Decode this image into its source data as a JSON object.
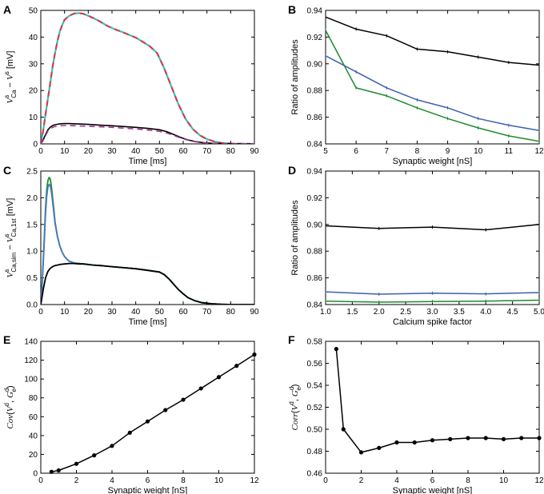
{
  "chart_data": [
    {
      "panel": "A",
      "type": "line",
      "xlabel": "Time [ms]",
      "ylabel": "V_Ca^s − V^s [mV]",
      "ylabel_parts": {
        "v1": "V",
        "sub1": "Ca",
        "sup1": "s",
        "mid": " − ",
        "v2": "V",
        "sup2": "s",
        "unit": " [mV]"
      },
      "xlim": [
        0,
        90
      ],
      "ylim": [
        0,
        50
      ],
      "xticks": [
        0,
        10,
        20,
        30,
        40,
        50,
        60,
        70,
        80,
        90
      ],
      "yticks": [
        0,
        10,
        20,
        30,
        40,
        50
      ],
      "series": [
        {
          "name": "large-cyan",
          "color": "#2ec4c4",
          "dash": "none",
          "width": 2.2,
          "x": [
            0,
            1,
            2,
            3,
            4,
            5,
            6,
            7,
            8,
            9,
            10,
            12,
            14,
            16,
            18,
            20,
            22,
            25,
            28,
            31,
            34,
            37,
            40,
            43,
            46,
            49,
            52,
            55,
            58,
            61,
            64,
            67,
            70,
            73,
            76,
            79,
            82,
            85,
            88,
            90
          ],
          "y": [
            0,
            5,
            11,
            17,
            23,
            29,
            34,
            38.5,
            42,
            44.5,
            46.5,
            48,
            48.8,
            49,
            48.7,
            48,
            47.2,
            45.8,
            44.2,
            43,
            42,
            40.9,
            39.8,
            38.2,
            36.5,
            34,
            28.3,
            21.5,
            14.8,
            9.3,
            5.6,
            3.2,
            1.8,
            0.9,
            0.4,
            0.2,
            0.1,
            0.05,
            0,
            0
          ]
        },
        {
          "name": "large-red-dashed",
          "color": "#e8323c",
          "dash": "7,5",
          "width": 2.0,
          "x": [
            0,
            1,
            2,
            3,
            4,
            5,
            6,
            7,
            8,
            9,
            10,
            12,
            14,
            16,
            18,
            20,
            22,
            25,
            28,
            31,
            34,
            37,
            40,
            43,
            46,
            49,
            52,
            55,
            58,
            61,
            64,
            67,
            70,
            73,
            76,
            79,
            82,
            85,
            88,
            90
          ],
          "y": [
            0,
            5,
            11,
            17,
            23,
            29,
            34,
            38.5,
            42,
            44.5,
            46.5,
            48,
            48.8,
            49,
            48.7,
            48,
            47.2,
            45.8,
            44.2,
            43,
            42,
            40.9,
            39.8,
            38.2,
            36.5,
            34,
            28.3,
            21.5,
            14.8,
            9.3,
            5.6,
            3.2,
            1.8,
            0.9,
            0.4,
            0.2,
            0.1,
            0.05,
            0,
            0
          ]
        },
        {
          "name": "small-black",
          "color": "#000000",
          "dash": "none",
          "width": 1.6,
          "x": [
            0,
            1,
            2,
            3,
            4,
            5,
            6,
            8,
            10,
            12,
            15,
            20,
            25,
            30,
            35,
            40,
            45,
            50,
            53,
            56,
            59,
            62,
            65,
            68,
            72,
            76,
            80,
            84,
            90
          ],
          "y": [
            0,
            1.5,
            3.5,
            5.3,
            6.3,
            6.9,
            7.2,
            7.5,
            7.6,
            7.6,
            7.5,
            7.3,
            7.0,
            6.8,
            6.5,
            6.2,
            5.8,
            5.3,
            4.6,
            3.5,
            2.4,
            1.5,
            0.9,
            0.5,
            0.2,
            0.1,
            0.05,
            0,
            0
          ]
        },
        {
          "name": "small-purple-dashed",
          "color": "#a0368c",
          "dash": "7,5",
          "width": 1.6,
          "x": [
            0,
            1,
            2,
            3,
            4,
            5,
            6,
            8,
            10,
            12,
            15,
            20,
            25,
            30,
            35,
            40,
            45,
            50,
            53,
            56,
            59,
            62,
            65,
            68,
            72,
            76,
            80,
            84,
            90
          ],
          "y": [
            0,
            1.3,
            3.1,
            4.8,
            5.7,
            6.2,
            6.5,
            6.8,
            6.9,
            6.9,
            6.8,
            6.6,
            6.4,
            6.2,
            5.9,
            5.6,
            5.2,
            4.7,
            4.1,
            3.2,
            2.2,
            1.4,
            0.8,
            0.4,
            0.15,
            0.05,
            0,
            0,
            0
          ]
        }
      ]
    },
    {
      "panel": "B",
      "type": "line",
      "xlabel": "Synaptic weight [nS]",
      "ylabel": "Ratio of amplitudes",
      "xlim": [
        5,
        12
      ],
      "ylim": [
        0.84,
        0.94
      ],
      "xticks": [
        5,
        6,
        7,
        8,
        9,
        10,
        11,
        12
      ],
      "yticks": [
        0.84,
        0.86,
        0.88,
        0.9,
        0.92,
        0.94
      ],
      "ytick_labels": [
        "0.84",
        "0.86",
        "0.88",
        "0.90",
        "0.92",
        "0.94"
      ],
      "x": [
        5,
        6,
        7,
        8,
        9,
        10,
        11,
        12
      ],
      "series": [
        {
          "name": "black",
          "color": "#000000",
          "values": [
            0.935,
            0.926,
            0.921,
            0.911,
            0.909,
            0.905,
            0.901,
            0.899
          ]
        },
        {
          "name": "blue",
          "color": "#3b5fb0",
          "values": [
            0.906,
            0.894,
            0.882,
            0.873,
            0.867,
            0.859,
            0.854,
            0.85
          ]
        },
        {
          "name": "green",
          "color": "#1e8a2e",
          "values": [
            0.925,
            0.882,
            0.876,
            0.867,
            0.859,
            0.852,
            0.846,
            0.842
          ]
        }
      ]
    },
    {
      "panel": "C",
      "type": "line",
      "xlabel": "Time [ms]",
      "ylabel": "V_Ca,sim^s − V_Ca,1st^s [mV]",
      "ylabel_parts": {
        "v1": "V",
        "sub1": "Ca,sim",
        "sup1": "s",
        "mid": " − ",
        "v2": "V",
        "sub2": "Ca,1st",
        "sup2": "s",
        "unit": " [mV]"
      },
      "xlim": [
        0,
        90
      ],
      "ylim": [
        0,
        2.5
      ],
      "xticks": [
        0,
        10,
        20,
        30,
        40,
        50,
        60,
        70,
        80,
        90
      ],
      "yticks": [
        0,
        0.5,
        1.0,
        1.5,
        2.0,
        2.5
      ],
      "ytick_labels": [
        "0.0",
        "0.5",
        "1.0",
        "1.5",
        "2.0",
        "2.5"
      ],
      "series": [
        {
          "name": "green",
          "color": "#1e8a2e",
          "width": 1.8,
          "x": [
            0,
            0.5,
            1,
            1.5,
            2,
            2.5,
            3,
            3.5,
            4,
            4.5,
            5,
            5.5,
            6,
            7,
            8,
            9,
            10,
            11,
            12,
            14,
            16,
            18,
            20,
            22,
            25,
            30,
            35,
            40,
            45,
            50,
            52,
            54,
            56,
            58,
            60,
            62,
            65,
            68,
            72,
            76,
            80,
            84,
            88,
            90
          ],
          "y": [
            0,
            0.35,
            0.8,
            1.3,
            1.8,
            2.15,
            2.32,
            2.38,
            2.35,
            2.2,
            2.0,
            1.78,
            1.55,
            1.28,
            1.1,
            0.98,
            0.9,
            0.85,
            0.81,
            0.78,
            0.77,
            0.76,
            0.75,
            0.74,
            0.73,
            0.71,
            0.69,
            0.67,
            0.64,
            0.61,
            0.56,
            0.48,
            0.38,
            0.28,
            0.2,
            0.13,
            0.07,
            0.035,
            0.015,
            0.005,
            0,
            0,
            0,
            0
          ]
        },
        {
          "name": "blue",
          "color": "#4a78c0",
          "width": 1.8,
          "x": [
            0,
            0.5,
            1,
            1.5,
            2,
            2.5,
            3,
            3.5,
            4,
            4.5,
            5,
            5.5,
            6,
            7,
            8,
            9,
            10,
            11,
            12,
            14,
            16,
            18,
            20,
            22,
            25,
            30,
            35,
            40,
            45,
            50,
            52,
            54,
            56,
            58,
            60,
            62,
            65,
            68,
            72,
            76,
            80,
            84,
            88,
            90
          ],
          "y": [
            0,
            0.32,
            0.75,
            1.22,
            1.7,
            2.03,
            2.2,
            2.25,
            2.22,
            2.1,
            1.92,
            1.72,
            1.52,
            1.27,
            1.1,
            0.98,
            0.9,
            0.85,
            0.81,
            0.78,
            0.77,
            0.76,
            0.75,
            0.74,
            0.73,
            0.71,
            0.69,
            0.67,
            0.64,
            0.61,
            0.56,
            0.48,
            0.38,
            0.28,
            0.2,
            0.13,
            0.07,
            0.035,
            0.015,
            0.005,
            0,
            0,
            0,
            0
          ]
        },
        {
          "name": "black",
          "color": "#000000",
          "width": 1.8,
          "x": [
            0,
            1,
            2,
            3,
            4,
            5,
            6,
            7,
            8,
            10,
            12,
            14,
            16,
            18,
            20,
            22,
            25,
            30,
            35,
            40,
            45,
            50,
            52,
            54,
            56,
            58,
            60,
            62,
            65,
            68,
            72,
            76,
            80,
            84,
            88,
            90
          ],
          "y": [
            0,
            0.28,
            0.5,
            0.62,
            0.68,
            0.71,
            0.73,
            0.74,
            0.75,
            0.76,
            0.77,
            0.77,
            0.76,
            0.76,
            0.75,
            0.74,
            0.73,
            0.71,
            0.69,
            0.67,
            0.64,
            0.61,
            0.56,
            0.48,
            0.38,
            0.28,
            0.2,
            0.13,
            0.07,
            0.035,
            0.015,
            0.005,
            0,
            0,
            0,
            0
          ]
        }
      ]
    },
    {
      "panel": "D",
      "type": "line",
      "xlabel": "Calcium spike factor",
      "ylabel": "Ratio of amplitudes",
      "xlim": [
        1.0,
        5.0
      ],
      "ylim": [
        0.84,
        0.94
      ],
      "xticks": [
        1.0,
        1.5,
        2.0,
        2.5,
        3.0,
        3.5,
        4.0,
        4.5,
        5.0
      ],
      "xtick_labels": [
        "1.0",
        "1.5",
        "2.0",
        "2.5",
        "3.0",
        "3.5",
        "4.0",
        "4.5",
        "5.0"
      ],
      "yticks": [
        0.84,
        0.86,
        0.88,
        0.9,
        0.92,
        0.94
      ],
      "ytick_labels": [
        "0.84",
        "0.86",
        "0.88",
        "0.90",
        "0.92",
        "0.94"
      ],
      "x": [
        1,
        2,
        3,
        4,
        5
      ],
      "series": [
        {
          "name": "black",
          "color": "#000000",
          "values": [
            0.899,
            0.897,
            0.898,
            0.896,
            0.9
          ]
        },
        {
          "name": "blue",
          "color": "#3b5fb0",
          "values": [
            0.8495,
            0.8478,
            0.8485,
            0.848,
            0.849
          ]
        },
        {
          "name": "green",
          "color": "#1e8a2e",
          "values": [
            0.8425,
            0.8418,
            0.8423,
            0.8426,
            0.8433
          ]
        }
      ]
    },
    {
      "panel": "E",
      "type": "line",
      "xlabel": "Synaptic weight [nS]",
      "ylabel": "Cov(V^d, G_e^d)",
      "ylabel_parts": {
        "fn": "Cov",
        "v": "V",
        "vsup": "d",
        "g": "G",
        "gsub": "e",
        "gsup": "d"
      },
      "xlim": [
        0,
        12
      ],
      "ylim": [
        0,
        140
      ],
      "xticks": [
        0,
        2,
        4,
        6,
        8,
        10,
        12
      ],
      "yticks": [
        0,
        20,
        40,
        60,
        80,
        100,
        120,
        140
      ],
      "series": [
        {
          "name": "black",
          "color": "#000000",
          "markers": true,
          "x": [
            0.6,
            1,
            2,
            3,
            4,
            5,
            6,
            7,
            8,
            9,
            10,
            11,
            12
          ],
          "values": [
            1.5,
            3,
            10,
            19,
            29,
            43,
            55,
            67,
            78,
            90,
            102,
            114,
            126
          ]
        }
      ]
    },
    {
      "panel": "F",
      "type": "line",
      "xlabel": "Synaptic weight [nS]",
      "ylabel": "Corr(V^d, G_e^d)",
      "ylabel_parts": {
        "fn": "Corr",
        "v": "V",
        "vsup": "d",
        "g": "G",
        "gsub": "e",
        "gsup": "d"
      },
      "xlim": [
        0,
        12
      ],
      "ylim": [
        0.46,
        0.58
      ],
      "xticks": [
        0,
        2,
        4,
        6,
        8,
        10,
        12
      ],
      "yticks": [
        0.46,
        0.48,
        0.5,
        0.52,
        0.54,
        0.56,
        0.58
      ],
      "ytick_labels": [
        "0.46",
        "0.48",
        "0.50",
        "0.52",
        "0.54",
        "0.56",
        "0.58"
      ],
      "series": [
        {
          "name": "black",
          "color": "#000000",
          "markers": true,
          "x": [
            0.6,
            1,
            2,
            3,
            4,
            5,
            6,
            7,
            8,
            9,
            10,
            11,
            12
          ],
          "values": [
            0.573,
            0.5,
            0.479,
            0.483,
            0.488,
            0.488,
            0.49,
            0.491,
            0.492,
            0.492,
            0.491,
            0.492,
            0.492
          ]
        }
      ]
    }
  ]
}
